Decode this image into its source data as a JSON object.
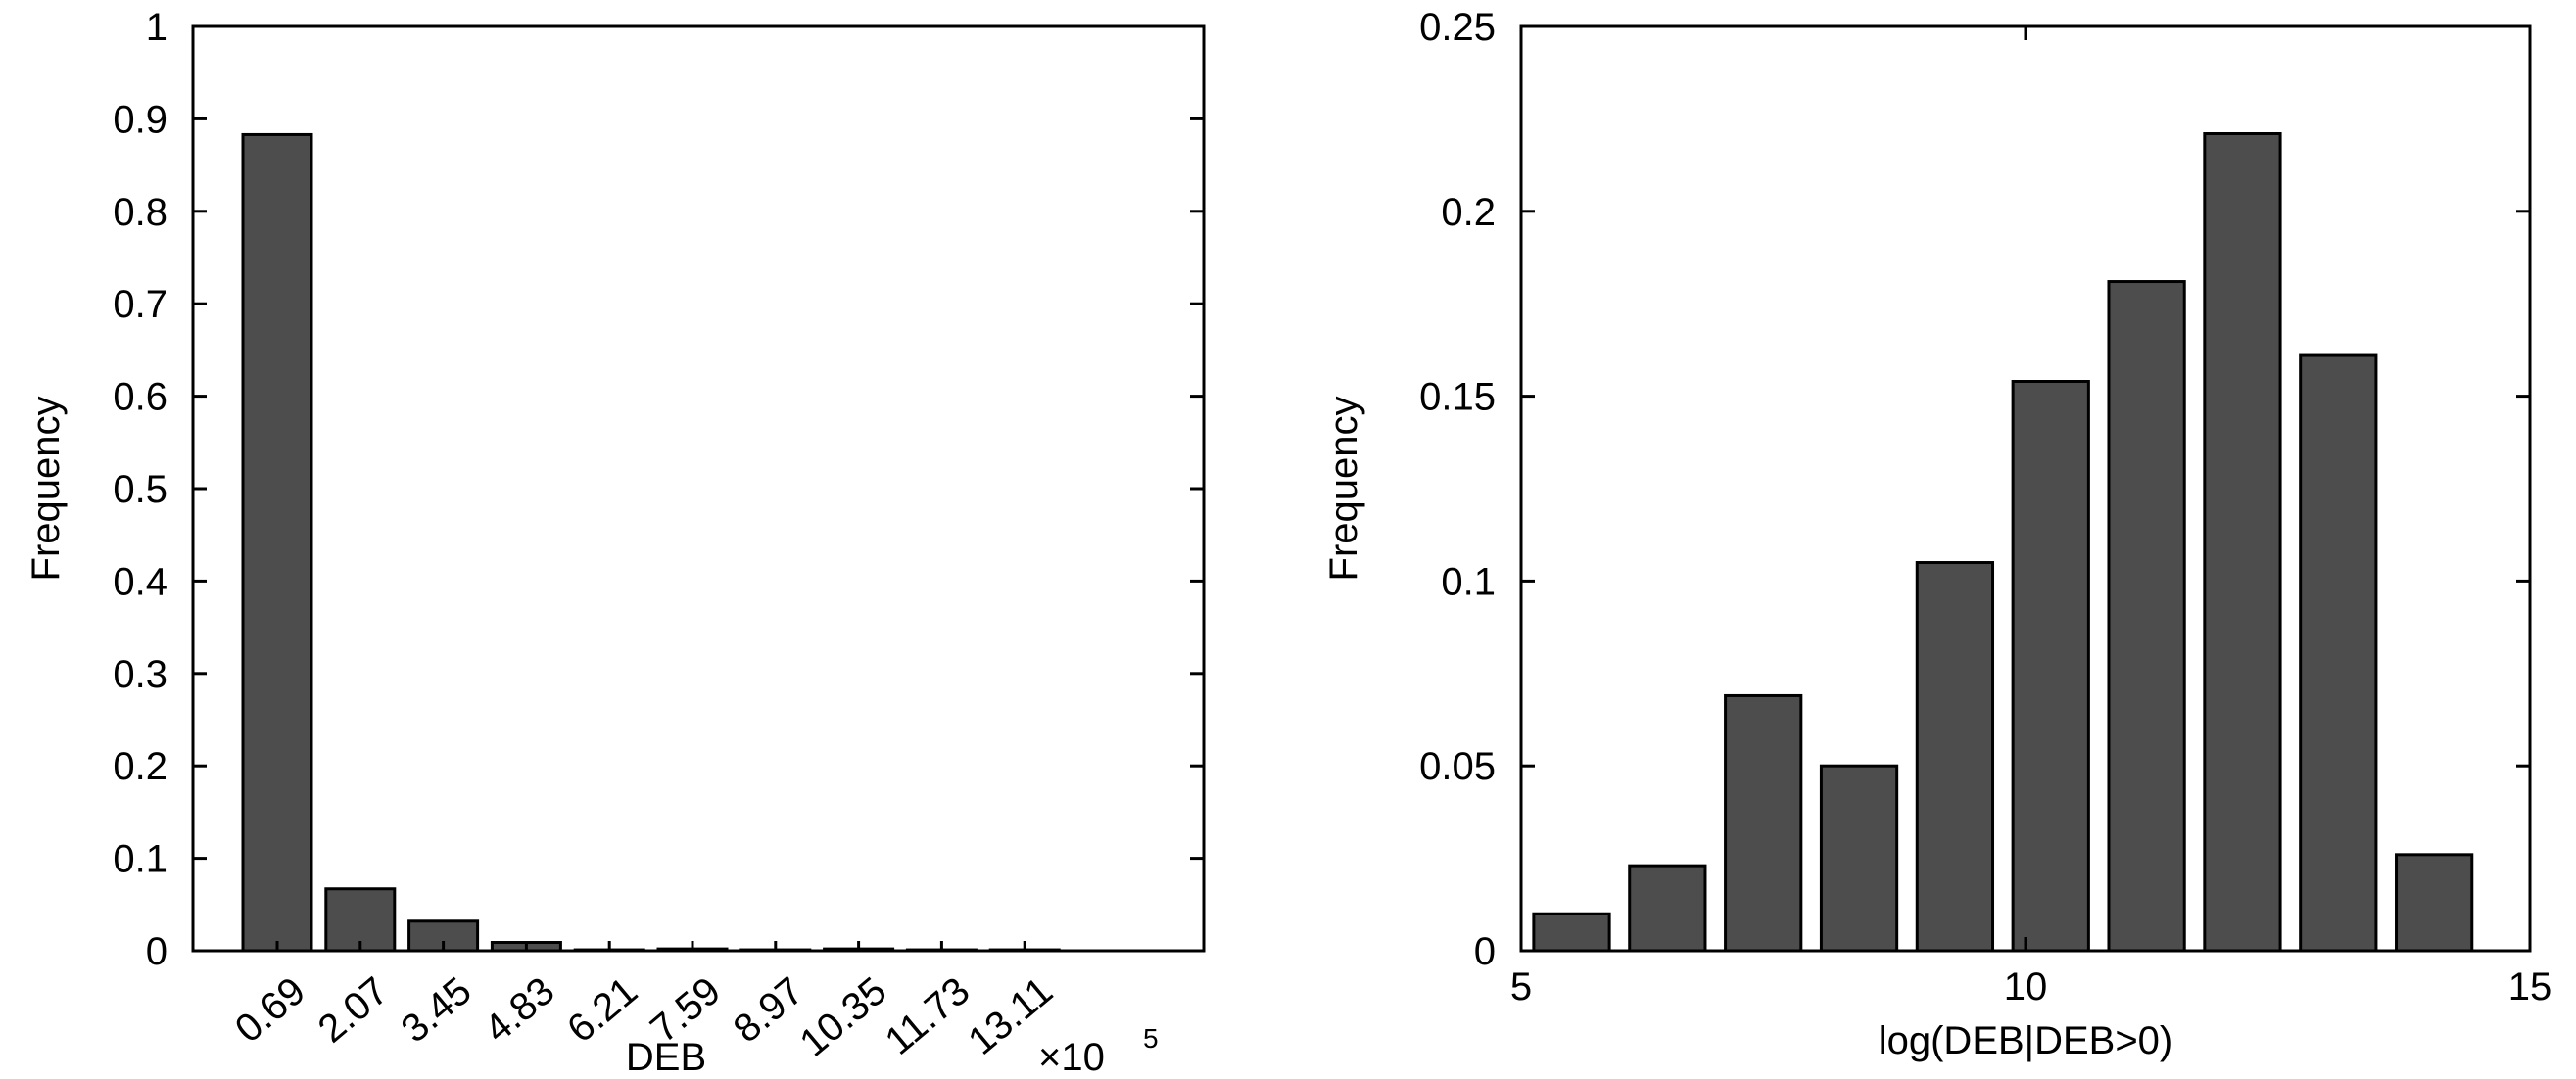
{
  "chart_data": [
    {
      "type": "bar",
      "xlabel": "DEB",
      "ylabel": "Frequency",
      "x_multiplier": "×10",
      "x_multiplier_exp": "5",
      "categories": [
        "0.69",
        "2.07",
        "3.45",
        "4.83",
        "6.21",
        "7.59",
        "8.97",
        "10.35",
        "11.73",
        "13.11"
      ],
      "values": [
        0.883,
        0.067,
        0.032,
        0.009,
        0.001,
        0.002,
        0.001,
        0.002,
        0.001,
        0.001
      ],
      "ylim": [
        0,
        1
      ],
      "yticks": [
        "0",
        "0.1",
        "0.2",
        "0.3",
        "0.4",
        "0.5",
        "0.6",
        "0.7",
        "0.8",
        "0.9",
        "1"
      ],
      "grid": false
    },
    {
      "type": "bar",
      "xlabel": "log(DEB|DEB>0)",
      "ylabel": "Frequency",
      "x": [
        5.5,
        6.45,
        7.4,
        8.35,
        9.3,
        10.25,
        11.2,
        12.15,
        13.1,
        14.05
      ],
      "values": [
        0.01,
        0.023,
        0.069,
        0.05,
        0.105,
        0.154,
        0.181,
        0.221,
        0.161,
        0.026
      ],
      "xlim": [
        5,
        15
      ],
      "ylim": [
        0,
        0.25
      ],
      "xticks": [
        "5",
        "10",
        "15"
      ],
      "yticks": [
        "0",
        "0.05",
        "0.1",
        "0.15",
        "0.2",
        "0.25"
      ],
      "grid": false
    }
  ]
}
